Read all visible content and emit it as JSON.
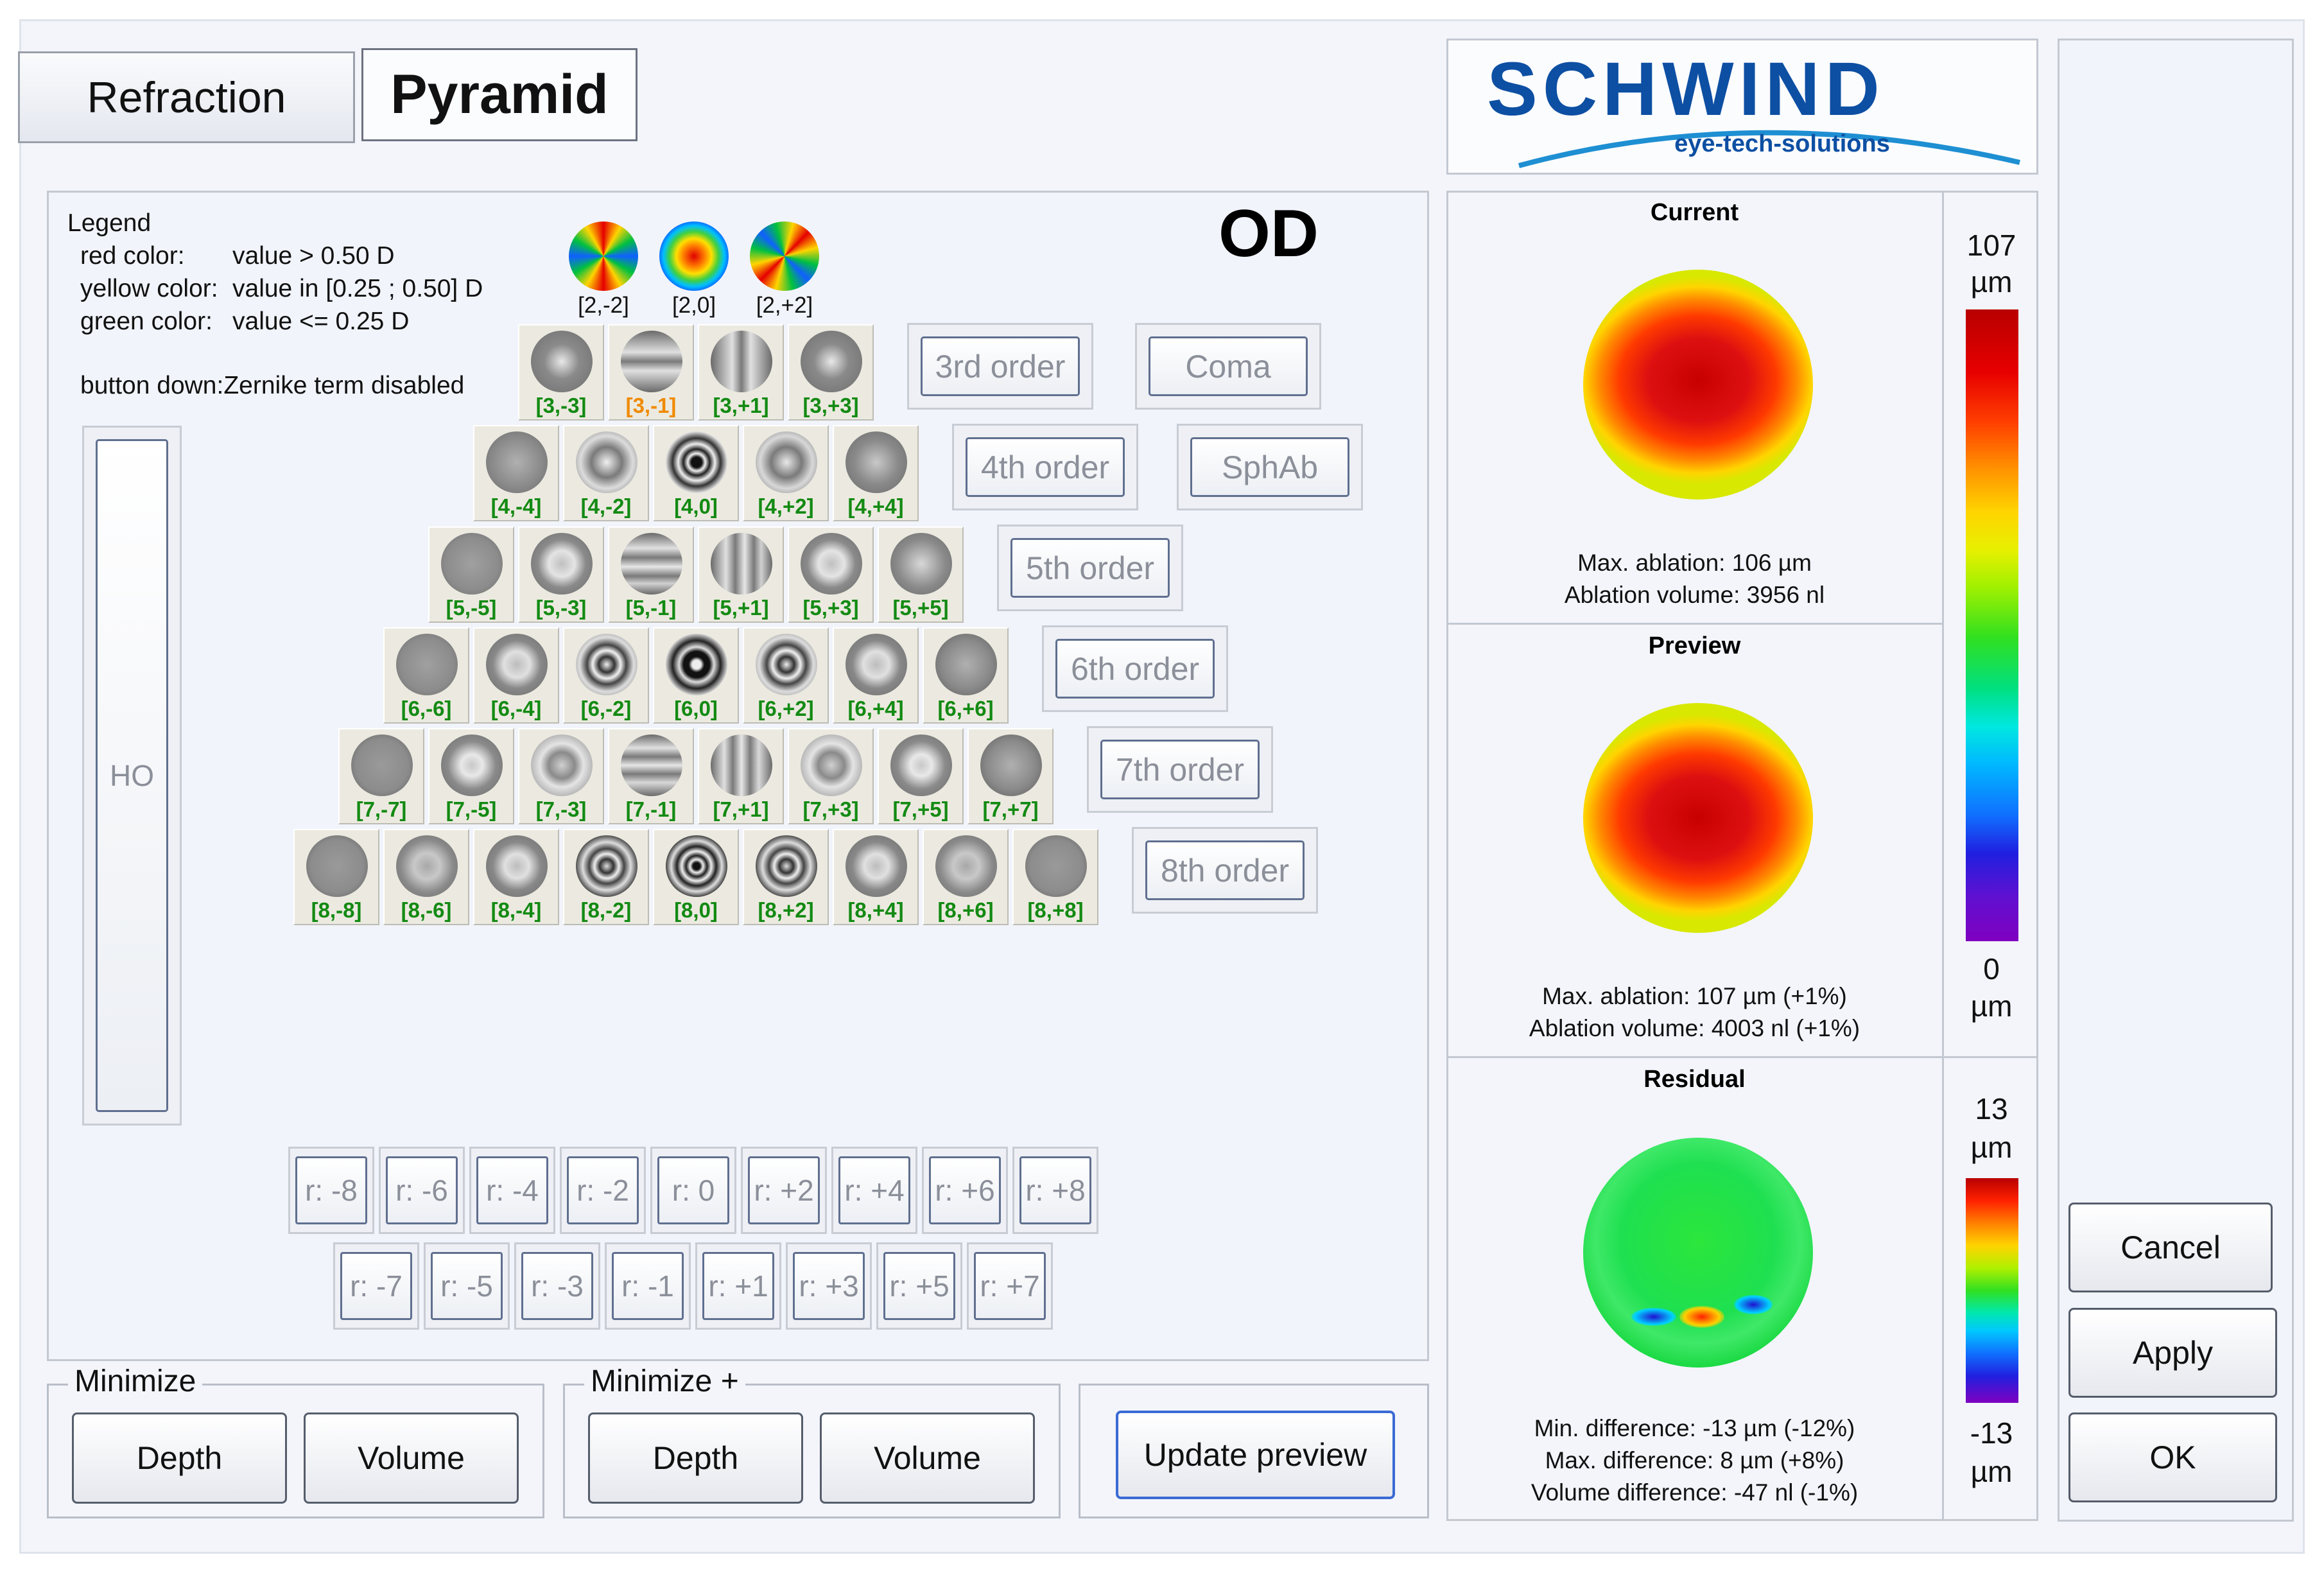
{
  "tabs": {
    "refraction": "Refraction",
    "pyramid": "Pyramid"
  },
  "logo": {
    "brand": "SCHWIND",
    "tagline": "eye-tech-solutions",
    "brand_color": "#0d4fa3"
  },
  "legend": {
    "title": "Legend",
    "red_label": "red color:",
    "red_value": "value > 0.50 D",
    "yellow_label": "yellow color:",
    "yellow_value": "value in [0.25 ; 0.50] D",
    "green_label": "green color:",
    "green_value": "value <= 0.25 D",
    "button_down": "button down:Zernike term disabled"
  },
  "eye": "OD",
  "second_order": [
    {
      "label": "[2,-2]",
      "icon": "astig-oblique-icon"
    },
    {
      "label": "[2,0]",
      "icon": "defocus-icon"
    },
    {
      "label": "[2,+2]",
      "icon": "astig-vertical-icon"
    }
  ],
  "pyramid_rows": [
    {
      "labels": [
        "[3,-3]",
        "[3,-1]",
        "[3,+1]",
        "[3,+3]"
      ],
      "status": [
        "green",
        "yellow",
        "green",
        "green"
      ]
    },
    {
      "labels": [
        "[4,-4]",
        "[4,-2]",
        "[4,0]",
        "[4,+2]",
        "[4,+4]"
      ]
    },
    {
      "labels": [
        "[5,-5]",
        "[5,-3]",
        "[5,-1]",
        "[5,+1]",
        "[5,+3]",
        "[5,+5]"
      ]
    },
    {
      "labels": [
        "[6,-6]",
        "[6,-4]",
        "[6,-2]",
        "[6,0]",
        "[6,+2]",
        "[6,+4]",
        "[6,+6]"
      ]
    },
    {
      "labels": [
        "[7,-7]",
        "[7,-5]",
        "[7,-3]",
        "[7,-1]",
        "[7,+1]",
        "[7,+3]",
        "[7,+5]",
        "[7,+7]"
      ]
    },
    {
      "labels": [
        "[8,-8]",
        "[8,-6]",
        "[8,-4]",
        "[8,-2]",
        "[8,0]",
        "[8,+2]",
        "[8,+4]",
        "[8,+6]",
        "[8,+8]"
      ]
    }
  ],
  "order_buttons": [
    "3rd order",
    "4th order",
    "5th order",
    "6th order",
    "7th order",
    "8th order"
  ],
  "group_buttons": {
    "coma": "Coma",
    "sphab": "SphAb"
  },
  "ho_label": "HO",
  "radial_row1": [
    "r: -8",
    "r: -6",
    "r: -4",
    "r: -2",
    "r: 0",
    "r: +2",
    "r: +4",
    "r: +6",
    "r: +8"
  ],
  "radial_row2": [
    "r: -7",
    "r: -5",
    "r: -3",
    "r: -1",
    "r: +1",
    "r: +3",
    "r: +5",
    "r: +7"
  ],
  "minimize": {
    "title": "Minimize",
    "depth": "Depth",
    "volume": "Volume"
  },
  "minimize_plus": {
    "title": "Minimize +",
    "depth": "Depth",
    "volume": "Volume"
  },
  "update_preview": "Update preview",
  "current": {
    "title": "Current",
    "line1": "Max. ablation: 106 µm",
    "line2": "Ablation volume: 3956 nl"
  },
  "preview": {
    "title": "Preview",
    "line1": "Max. ablation: 107 µm (+1%)",
    "line2": "Ablation volume: 4003 nl (+1%)"
  },
  "residual": {
    "title": "Residual",
    "line1": "Min. difference: -13 µm (-12%)",
    "line2": "Max. difference: 8 µm (+8%)",
    "line3": "Volume difference: -47 nl (-1%)"
  },
  "scale_top": {
    "max": "107",
    "min": "0",
    "unit": "µm"
  },
  "scale_bottom": {
    "max": "13",
    "min": "-13",
    "unit": "µm"
  },
  "actions": {
    "cancel": "Cancel",
    "apply": "Apply",
    "ok": "OK"
  }
}
